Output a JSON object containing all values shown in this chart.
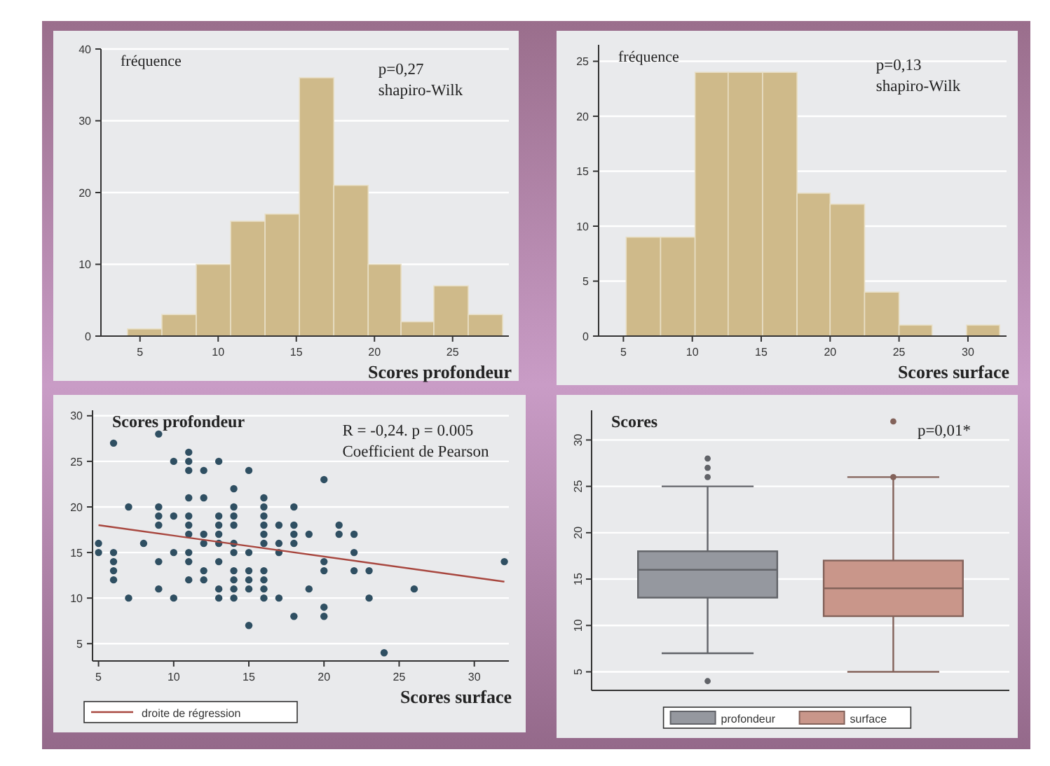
{
  "chart_data": [
    {
      "type": "histogram",
      "ylabel": "fréquence",
      "xlabel": "Scores profondeur",
      "annotations": [
        "p=0,27",
        "shapiro-Wilk"
      ],
      "bins": [
        4.2,
        6.4,
        8.6,
        10.8,
        13.0,
        15.2,
        17.4,
        19.6,
        21.7,
        23.8,
        26.0,
        28.2
      ],
      "values": [
        1,
        3,
        10,
        16,
        17,
        36,
        21,
        10,
        2,
        7,
        3
      ],
      "color": "#cfba8a",
      "xlim": [
        2.5,
        28.6
      ],
      "xticks": [
        5,
        10,
        15,
        20,
        25
      ],
      "ylim": [
        0,
        40
      ],
      "yticks": [
        0,
        10,
        20,
        30,
        40
      ],
      "grid": "y"
    },
    {
      "type": "histogram",
      "ylabel": "fréquence",
      "xlabel": "Scores surface",
      "annotations": [
        "p=0,13",
        "shapiro-Wilk"
      ],
      "bins": [
        5.2,
        7.7,
        10.2,
        12.6,
        15.1,
        17.6,
        20.0,
        22.5,
        25.0,
        27.4,
        29.9,
        32.3
      ],
      "values": [
        9,
        9,
        24,
        24,
        24,
        13,
        12,
        4,
        1,
        0,
        1
      ],
      "color": "#cfba8a",
      "xlim": [
        3.2,
        32.8
      ],
      "xticks": [
        5,
        10,
        15,
        20,
        25,
        30
      ],
      "ylim": [
        0,
        26.5
      ],
      "yticks": [
        0,
        5,
        10,
        15,
        20,
        25
      ],
      "grid": "y"
    },
    {
      "type": "scatter",
      "ylabel": "Scores profondeur",
      "xlabel": "Scores surface",
      "annotations": [
        "R = -0,24. p = 0.005",
        "Coefficient de Pearson"
      ],
      "legend": "bottom left",
      "grid": "y",
      "xlim": [
        4.6,
        32.3
      ],
      "xticks": [
        5,
        10,
        15,
        20,
        25,
        30
      ],
      "ylim": [
        3.1,
        30.6
      ],
      "yticks": [
        5,
        10,
        15,
        20,
        25,
        30
      ],
      "series": [
        {
          "type": "scatter",
          "marker": "circle",
          "color": "#2f4f62",
          "x": [
            5,
            5,
            6,
            6,
            6,
            6,
            6,
            7,
            7,
            8,
            9,
            9,
            9,
            9,
            9,
            9,
            10,
            10,
            10,
            10,
            11,
            11,
            11,
            11,
            11,
            11,
            11,
            11,
            11,
            11,
            12,
            12,
            12,
            12,
            12,
            12,
            13,
            13,
            13,
            13,
            13,
            13,
            13,
            13,
            14,
            14,
            14,
            14,
            14,
            14,
            14,
            14,
            14,
            14,
            15,
            15,
            15,
            15,
            15,
            15,
            16,
            16,
            16,
            16,
            16,
            16,
            16,
            16,
            16,
            16,
            17,
            17,
            17,
            17,
            18,
            18,
            18,
            18,
            18,
            19,
            19,
            20,
            20,
            20,
            20,
            20,
            21,
            21,
            22,
            22,
            22,
            23,
            23,
            24,
            26,
            32
          ],
          "values": [
            16,
            15,
            27,
            15,
            14,
            13,
            12,
            20,
            10,
            16,
            28,
            20,
            19,
            18,
            14,
            11,
            25,
            19,
            15,
            10,
            26,
            25,
            24,
            21,
            19,
            18,
            17,
            15,
            14,
            12,
            24,
            21,
            17,
            16,
            13,
            12,
            25,
            19,
            18,
            17,
            16,
            14,
            11,
            10,
            22,
            20,
            19,
            18,
            16,
            15,
            13,
            12,
            11,
            10,
            24,
            15,
            13,
            12,
            11,
            7,
            21,
            20,
            19,
            18,
            17,
            16,
            13,
            12,
            11,
            10,
            18,
            16,
            15,
            10,
            20,
            18,
            17,
            16,
            8,
            17,
            11,
            23,
            14,
            13,
            9,
            8,
            18,
            17,
            17,
            15,
            13,
            13,
            10,
            4,
            11,
            14
          ]
        },
        {
          "type": "line",
          "name": "droite de régression",
          "color": "#a8473f",
          "x": [
            5,
            32
          ],
          "values": [
            18,
            11.8
          ]
        }
      ]
    },
    {
      "type": "box",
      "ylabel": "Scores",
      "annotations": [
        "p=0,01*"
      ],
      "categories": [
        null,
        null
      ],
      "tick_labels": "y",
      "legend": "bottom",
      "grid": "y",
      "ylim": [
        3,
        33.2
      ],
      "yticks": [
        5,
        10,
        15,
        20,
        25,
        30
      ],
      "series": [
        {
          "name": "profondeur",
          "color": "#95989f",
          "boxes": [
            {
              "low": 7,
              "q1": 13,
              "median": 16,
              "q3": 18,
              "high": 25,
              "outliers": [
                4,
                26,
                27,
                28
              ]
            },
            null
          ]
        },
        {
          "name": "surface",
          "color": "#c9968a",
          "boxes": [
            null,
            {
              "low": 5,
              "q1": 11,
              "median": 14,
              "q3": 17,
              "high": 26,
              "outliers": [
                26,
                32
              ]
            }
          ]
        }
      ]
    }
  ]
}
